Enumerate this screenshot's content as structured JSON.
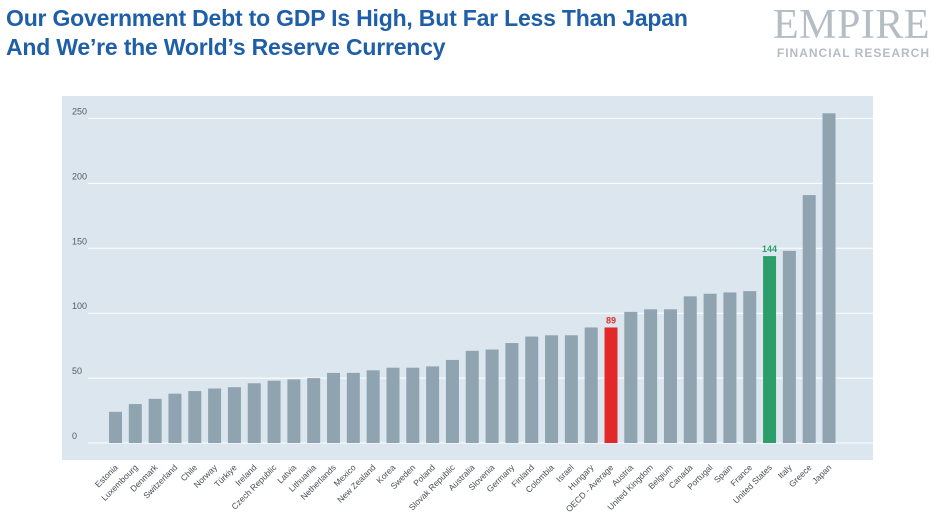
{
  "header": {
    "title_line1": "Our Government Debt to GDP Is High, But Far Less Than Japan",
    "title_line2": "And We’re the World’s Reserve Currency"
  },
  "logo": {
    "word": "EMPIRE",
    "sub": "FINANCIAL RESEARCH"
  },
  "colors": {
    "bar": "#8fa3b1",
    "highlight_oecd": "#e3282c",
    "highlight_us": "#2c9e6a",
    "plot_bg": "#dbe6ee",
    "grid": "#ffffff"
  },
  "chart_data": {
    "type": "bar",
    "title": "",
    "xlabel": "",
    "ylabel": "",
    "ylim": [
      0,
      260
    ],
    "yticks": [
      0,
      50,
      100,
      150,
      200,
      250
    ],
    "grid": true,
    "categories": [
      "Estonia",
      "Luxembourg",
      "Denmark",
      "Switzerland",
      "Chile",
      "Norway",
      "Türkiye",
      "Ireland",
      "Czech Republic",
      "Latvia",
      "Lithuania",
      "Netherlands",
      "Mexico",
      "New Zealand",
      "Korea",
      "Sweden",
      "Poland",
      "Slovak Republic",
      "Australia",
      "Slovenia",
      "Germany",
      "Finland",
      "Colombia",
      "Israel",
      "Hungary",
      "OECD - Average",
      "Austria",
      "United Kingdom",
      "Belgium",
      "Canada",
      "Portugal",
      "Spain",
      "France",
      "United States",
      "Italy",
      "Greece",
      "Japan"
    ],
    "values": [
      24,
      30,
      34,
      38,
      40,
      42,
      43,
      46,
      48,
      49,
      50,
      54,
      54,
      56,
      58,
      58,
      59,
      64,
      71,
      72,
      77,
      82,
      83,
      83,
      89,
      89,
      101,
      103,
      103,
      113,
      115,
      116,
      117,
      144,
      148,
      191,
      254
    ],
    "highlights": [
      {
        "index": 25,
        "color": "red",
        "label": "89"
      },
      {
        "index": 33,
        "color": "green",
        "label": "144"
      }
    ]
  }
}
